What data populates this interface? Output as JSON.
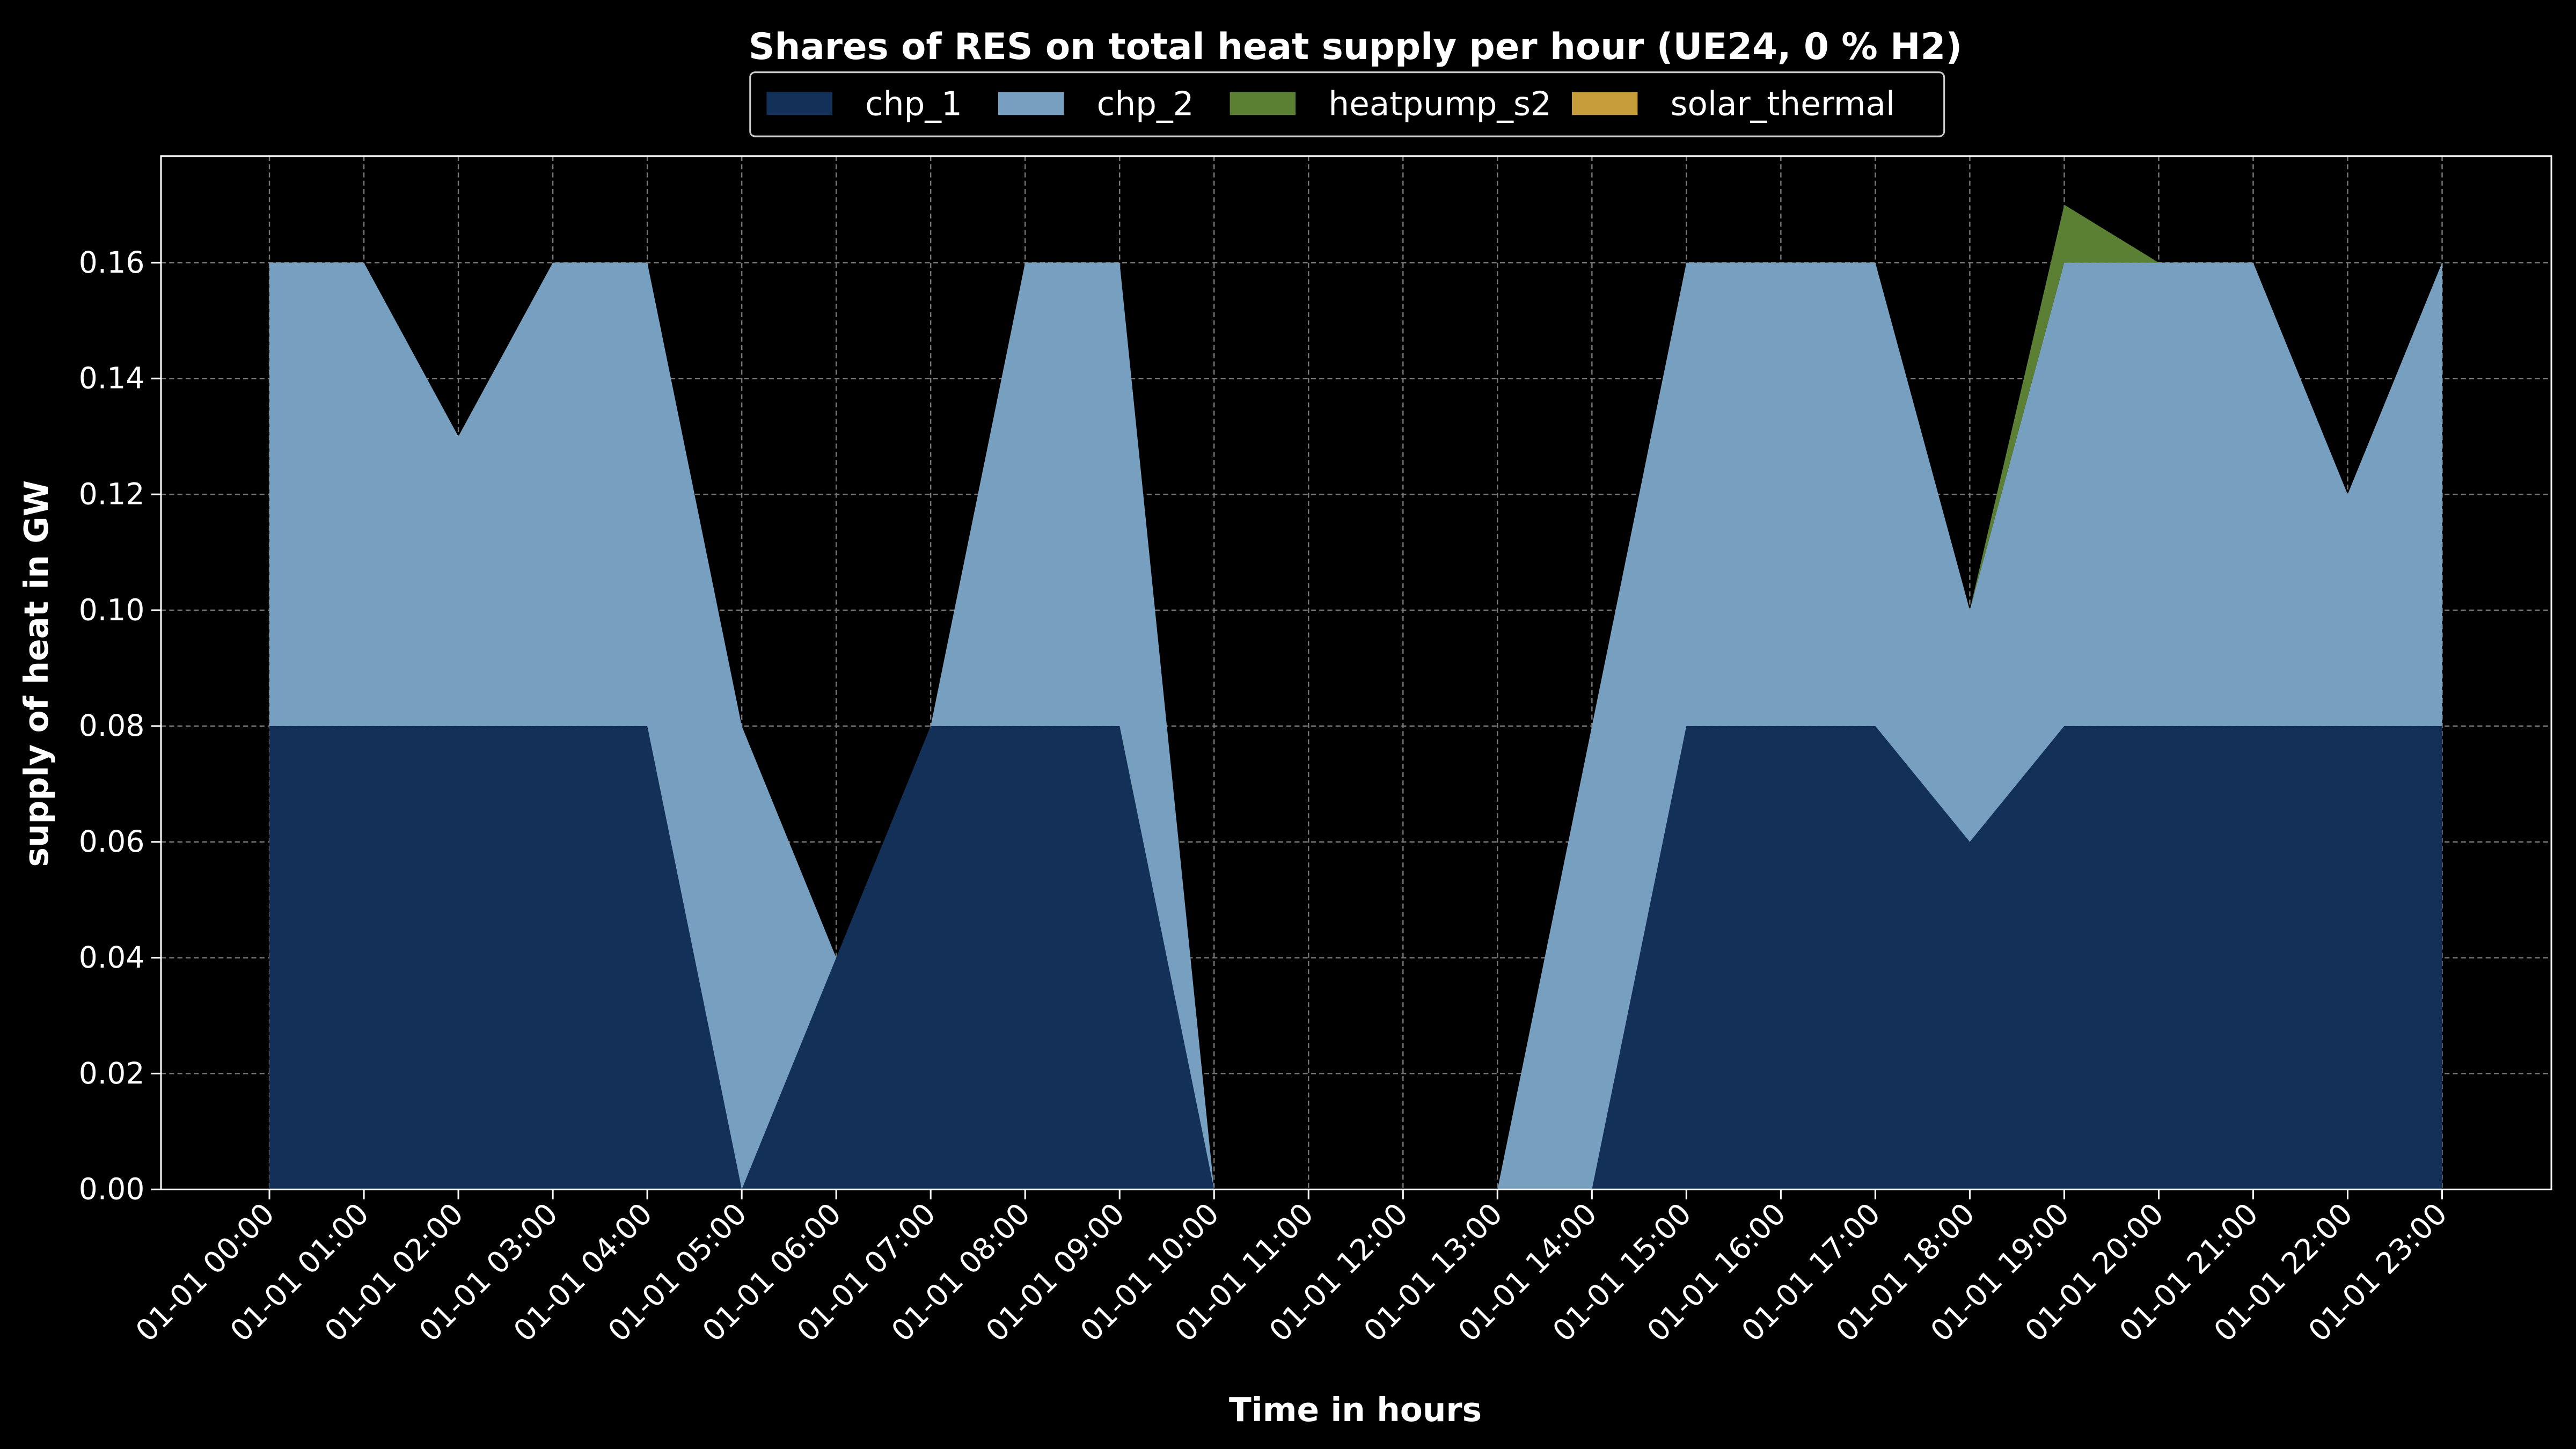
{
  "chart_data": {
    "type": "stacked_area",
    "title": "Shares of RES on total heat supply per hour (UE24, 0 % H2)",
    "xlabel": "Time in hours",
    "ylabel": "supply of heat in GW",
    "categories": [
      "01-01 00:00",
      "01-01 01:00",
      "01-01 02:00",
      "01-01 03:00",
      "01-01 04:00",
      "01-01 05:00",
      "01-01 06:00",
      "01-01 07:00",
      "01-01 08:00",
      "01-01 09:00",
      "01-01 10:00",
      "01-01 11:00",
      "01-01 12:00",
      "01-01 13:00",
      "01-01 14:00",
      "01-01 15:00",
      "01-01 16:00",
      "01-01 17:00",
      "01-01 18:00",
      "01-01 19:00",
      "01-01 20:00",
      "01-01 21:00",
      "01-01 22:00",
      "01-01 23:00"
    ],
    "series": [
      {
        "name": "chp_1",
        "color": "#123058",
        "values": [
          0.08,
          0.08,
          0.08,
          0.08,
          0.08,
          0,
          0.04,
          0.08,
          0.08,
          0.08,
          0,
          0,
          0,
          0,
          0,
          0.08,
          0.08,
          0.08,
          0.06,
          0.08,
          0.08,
          0.08,
          0.08,
          0.08
        ]
      },
      {
        "name": "chp_2",
        "color": "#779fc0",
        "values": [
          0.08,
          0.08,
          0.05,
          0.08,
          0.08,
          0.08,
          0,
          0,
          0.08,
          0.08,
          0,
          0,
          0,
          0,
          0.08,
          0.08,
          0.08,
          0.08,
          0.04,
          0.08,
          0.08,
          0.08,
          0.04,
          0.08
        ]
      },
      {
        "name": "heatpump_s2",
        "color": "#5b7f33",
        "values": [
          0,
          0,
          0,
          0,
          0,
          0,
          0,
          0,
          0,
          0,
          0,
          0,
          0,
          0,
          0,
          0,
          0,
          0,
          0,
          0.01,
          0,
          0,
          0,
          0
        ]
      },
      {
        "name": "solar_thermal",
        "color": "#c69d3a",
        "values": [
          0,
          0,
          0,
          0,
          0,
          0,
          0,
          0,
          0,
          0,
          0,
          0,
          0,
          0,
          0,
          0,
          0,
          0,
          0,
          0,
          0,
          0,
          0,
          0
        ]
      }
    ],
    "ylim": [
      0,
      0.1784
    ],
    "yticks": [
      {
        "value": 0,
        "label": "0.00"
      },
      0.02,
      0.04,
      0.06,
      0.08,
      {
        "value": 0.1,
        "label": "0.10"
      },
      0.12,
      0.14,
      0.16
    ],
    "grid": true,
    "legend": "top"
  }
}
